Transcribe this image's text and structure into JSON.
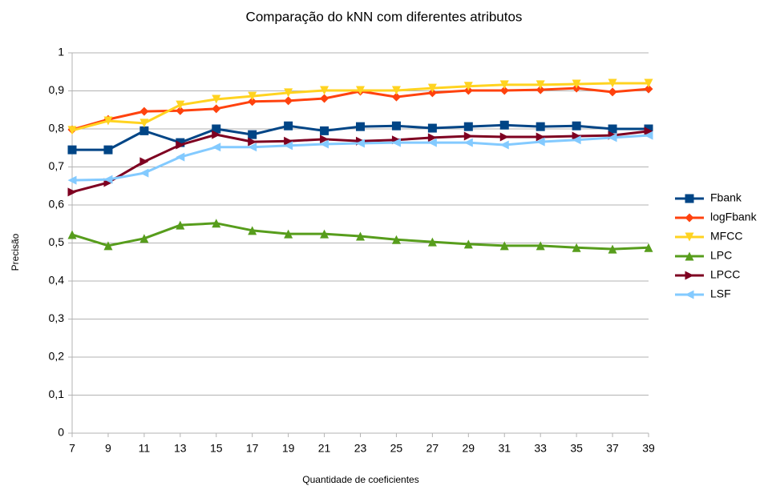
{
  "chart_data": {
    "type": "line",
    "title": "Comparação do kNN com diferentes atributos",
    "x_label": "Quantidade de coeficientes",
    "y_label": "Precisão",
    "x": [
      7,
      9,
      11,
      13,
      15,
      17,
      19,
      21,
      23,
      25,
      27,
      29,
      31,
      33,
      35,
      37,
      39
    ],
    "xlim": [
      7,
      39
    ],
    "xticks": [
      7,
      9,
      11,
      13,
      15,
      17,
      19,
      21,
      23,
      25,
      27,
      29,
      31,
      33,
      35,
      37,
      39
    ],
    "ylim": [
      0,
      1
    ],
    "yticks": [
      0,
      {
        "value": 0.1,
        "label": "0,1"
      },
      {
        "value": 0.2,
        "label": "0,2"
      },
      {
        "value": 0.3,
        "label": "0,3"
      },
      {
        "value": 0.4,
        "label": "0,4"
      },
      {
        "value": 0.5,
        "label": "0,5"
      },
      {
        "value": 0.6,
        "label": "0,6"
      },
      {
        "value": 0.7,
        "label": "0,7"
      },
      {
        "value": 0.8,
        "label": "0,8"
      },
      {
        "value": 0.9,
        "label": "0,9"
      },
      1
    ],
    "grid": true,
    "legend": "right",
    "series": [
      {
        "name": "Fbank",
        "color": "#004586",
        "marker": "square",
        "values": [
          0.745,
          0.745,
          0.795,
          0.764,
          0.8,
          0.785,
          0.808,
          0.795,
          0.806,
          0.808,
          0.802,
          0.806,
          0.81,
          0.806,
          0.808,
          0.8,
          0.8
        ]
      },
      {
        "name": "logFbank",
        "color": "#ff420e",
        "marker": "diamond",
        "values": [
          0.798,
          0.825,
          0.846,
          0.848,
          0.853,
          0.872,
          0.874,
          0.88,
          0.899,
          0.884,
          0.895,
          0.901,
          0.901,
          0.903,
          0.907,
          0.897,
          0.905
        ]
      },
      {
        "name": "MFCC",
        "color": "#ffd320",
        "marker": "triangle-down",
        "values": [
          0.796,
          0.821,
          0.815,
          0.863,
          0.878,
          0.886,
          0.895,
          0.901,
          0.901,
          0.901,
          0.907,
          0.912,
          0.916,
          0.916,
          0.918,
          0.92,
          0.92
        ]
      },
      {
        "name": "LPC",
        "color": "#579d1c",
        "marker": "triangle-up",
        "values": [
          0.522,
          0.493,
          0.512,
          0.547,
          0.552,
          0.533,
          0.524,
          0.524,
          0.518,
          0.509,
          0.503,
          0.497,
          0.493,
          0.493,
          0.488,
          0.484,
          0.488
        ]
      },
      {
        "name": "LPCC",
        "color": "#7e0021",
        "marker": "triangle-right",
        "values": [
          0.634,
          0.659,
          0.714,
          0.758,
          0.785,
          0.766,
          0.768,
          0.773,
          0.768,
          0.771,
          0.777,
          0.781,
          0.779,
          0.779,
          0.781,
          0.783,
          0.794
        ]
      },
      {
        "name": "LSF",
        "color": "#83caff",
        "marker": "triangle-left",
        "values": [
          0.665,
          0.667,
          0.684,
          0.726,
          0.752,
          0.752,
          0.756,
          0.76,
          0.762,
          0.764,
          0.764,
          0.764,
          0.758,
          0.766,
          0.771,
          0.777,
          0.783
        ]
      }
    ]
  }
}
